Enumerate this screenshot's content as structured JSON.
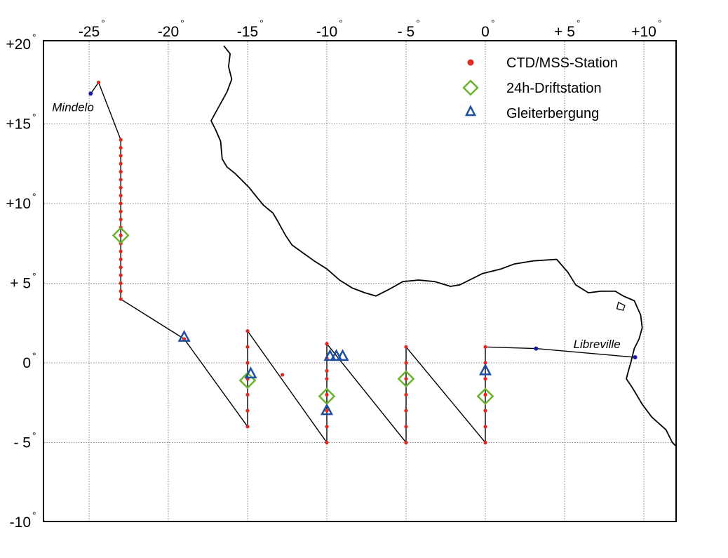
{
  "map": {
    "lon_ticks": [
      {
        "value": -25,
        "label": "-25"
      },
      {
        "value": -20,
        "label": "-20"
      },
      {
        "value": -15,
        "label": "-15"
      },
      {
        "value": -10,
        "label": "-10"
      },
      {
        "value": -5,
        "label": "- 5"
      },
      {
        "value": 0,
        "label": "0"
      },
      {
        "value": 5,
        "label": "+ 5"
      },
      {
        "value": 10,
        "label": "+10"
      }
    ],
    "lat_ticks": [
      {
        "value": 20,
        "label": "+20"
      },
      {
        "value": 15,
        "label": "+15"
      },
      {
        "value": 10,
        "label": "+10"
      },
      {
        "value": 5,
        "label": "+ 5"
      },
      {
        "value": 0,
        "label": "0"
      },
      {
        "value": -5,
        "label": "- 5"
      },
      {
        "value": -10,
        "label": "-10"
      }
    ],
    "degree_symbol": "°",
    "extent": {
      "lon": [
        -28,
        12
      ],
      "lat": [
        -10,
        20.3
      ]
    },
    "colors": {
      "station": "#e0281e",
      "drift": "#6ab42d",
      "glider": "#1f4fa0",
      "track": "#000000",
      "grid": "#888888",
      "port": "#1a1aa8"
    },
    "legend": {
      "station": "CTD/MSS-Station",
      "drift": "24h-Driftstation",
      "glider": "Gleiterbergung"
    },
    "places": [
      {
        "name": "Mindelo",
        "lon": -24.9,
        "lat": 16.9
      },
      {
        "name": "Libreville",
        "lon": 9.45,
        "lat": 0.4
      }
    ],
    "coastline": [
      [
        -16.5,
        19.9
      ],
      [
        -16.1,
        19.4
      ],
      [
        -16.2,
        18.6
      ],
      [
        -16.0,
        17.8
      ],
      [
        -16.3,
        17.0
      ],
      [
        -16.8,
        16.1
      ],
      [
        -17.3,
        15.2
      ],
      [
        -17.0,
        14.6
      ],
      [
        -16.7,
        13.9
      ],
      [
        -16.6,
        12.8
      ],
      [
        -16.3,
        12.3
      ],
      [
        -15.8,
        11.9
      ],
      [
        -15.4,
        11.5
      ],
      [
        -14.9,
        11.0
      ],
      [
        -14.5,
        10.5
      ],
      [
        -14.0,
        9.9
      ],
      [
        -13.4,
        9.4
      ],
      [
        -13.1,
        8.9
      ],
      [
        -12.6,
        8.0
      ],
      [
        -12.2,
        7.4
      ],
      [
        -11.5,
        6.9
      ],
      [
        -10.8,
        6.4
      ],
      [
        -10.0,
        5.9
      ],
      [
        -9.2,
        5.2
      ],
      [
        -8.4,
        4.7
      ],
      [
        -7.6,
        4.4
      ],
      [
        -6.9,
        4.2
      ],
      [
        -6.1,
        4.6
      ],
      [
        -5.2,
        5.1
      ],
      [
        -4.2,
        5.2
      ],
      [
        -3.2,
        5.1
      ],
      [
        -2.2,
        4.8
      ],
      [
        -1.6,
        4.9
      ],
      [
        -1.0,
        5.2
      ],
      [
        -0.2,
        5.6
      ],
      [
        1.0,
        5.9
      ],
      [
        1.8,
        6.2
      ],
      [
        3.0,
        6.4
      ],
      [
        4.5,
        6.5
      ],
      [
        5.2,
        5.7
      ],
      [
        5.7,
        4.9
      ],
      [
        6.5,
        4.4
      ],
      [
        7.3,
        4.5
      ],
      [
        8.2,
        4.5
      ],
      [
        8.7,
        4.2
      ],
      [
        9.4,
        3.9
      ],
      [
        9.8,
        3.0
      ],
      [
        9.9,
        2.2
      ],
      [
        9.7,
        1.5
      ],
      [
        9.4,
        0.9
      ],
      [
        9.2,
        0.1
      ],
      [
        9.0,
        -0.6
      ],
      [
        8.9,
        -1.0
      ],
      [
        9.3,
        -1.6
      ],
      [
        9.9,
        -2.6
      ],
      [
        10.5,
        -3.4
      ],
      [
        11.4,
        -4.2
      ],
      [
        11.8,
        -5.0
      ],
      [
        12.0,
        -5.2
      ]
    ],
    "island": [
      [
        8.4,
        3.8
      ],
      [
        8.8,
        3.6
      ],
      [
        8.7,
        3.3
      ],
      [
        8.3,
        3.4
      ],
      [
        8.4,
        3.8
      ]
    ],
    "track": [
      [
        -24.9,
        16.9
      ],
      [
        -24.4,
        17.6
      ],
      [
        -23.0,
        14.0
      ],
      [
        -23.0,
        4.0
      ],
      [
        -19.0,
        1.5
      ],
      [
        -15.0,
        -4.0
      ],
      [
        -15.0,
        2.0
      ],
      [
        -10.0,
        -5.0
      ],
      [
        -10.0,
        1.2
      ],
      [
        -5.0,
        -5.0
      ],
      [
        -5.0,
        1.0
      ],
      [
        0.0,
        -5.0
      ],
      [
        0.0,
        1.0
      ],
      [
        3.2,
        0.9
      ],
      [
        9.45,
        0.35
      ]
    ],
    "stations": [
      [
        -24.4,
        17.6
      ],
      [
        -23.0,
        14.0
      ],
      [
        -23.0,
        13.5
      ],
      [
        -23.0,
        13.0
      ],
      [
        -23.0,
        12.5
      ],
      [
        -23.0,
        12.0
      ],
      [
        -23.0,
        11.5
      ],
      [
        -23.0,
        11.0
      ],
      [
        -23.0,
        10.5
      ],
      [
        -23.0,
        10.0
      ],
      [
        -23.0,
        9.5
      ],
      [
        -23.0,
        9.0
      ],
      [
        -23.0,
        8.5
      ],
      [
        -23.0,
        8.0
      ],
      [
        -23.0,
        7.5
      ],
      [
        -23.0,
        7.0
      ],
      [
        -23.0,
        6.5
      ],
      [
        -23.0,
        6.0
      ],
      [
        -23.0,
        5.5
      ],
      [
        -23.0,
        5.0
      ],
      [
        -23.0,
        4.5
      ],
      [
        -23.0,
        4.0
      ],
      [
        -19.0,
        1.5
      ],
      [
        -15.0,
        2.0
      ],
      [
        -15.0,
        1.0
      ],
      [
        -15.0,
        0.0
      ],
      [
        -15.0,
        -1.0
      ],
      [
        -15.0,
        -2.0
      ],
      [
        -15.0,
        -3.0
      ],
      [
        -15.0,
        -4.0
      ],
      [
        -12.8,
        -0.75
      ],
      [
        -10.0,
        1.2
      ],
      [
        -10.0,
        0.3
      ],
      [
        -10.0,
        -0.5
      ],
      [
        -10.0,
        -1.0
      ],
      [
        -10.0,
        -2.0
      ],
      [
        -10.0,
        -3.0
      ],
      [
        -10.0,
        -4.0
      ],
      [
        -10.0,
        -5.0
      ],
      [
        -5.0,
        1.0
      ],
      [
        -5.0,
        0.0
      ],
      [
        -5.0,
        -1.0
      ],
      [
        -5.0,
        -2.0
      ],
      [
        -5.0,
        -3.0
      ],
      [
        -5.0,
        -4.0
      ],
      [
        -5.0,
        -5.0
      ],
      [
        0.0,
        1.0
      ],
      [
        0.0,
        0.0
      ],
      [
        0.0,
        -1.0
      ],
      [
        0.0,
        -2.0
      ],
      [
        0.0,
        -3.0
      ],
      [
        0.0,
        -4.0
      ],
      [
        0.0,
        -5.0
      ]
    ],
    "ports": [
      [
        -24.9,
        16.9
      ],
      [
        3.2,
        0.9
      ],
      [
        9.45,
        0.35
      ]
    ],
    "drift_stations": [
      [
        -23.0,
        8.0
      ],
      [
        -15.0,
        -1.1
      ],
      [
        -10.0,
        -2.1
      ],
      [
        -5.0,
        -1.0
      ],
      [
        0.0,
        -2.1
      ]
    ],
    "glider_recoveries": [
      [
        -19.0,
        1.6
      ],
      [
        -14.8,
        -0.7
      ],
      [
        -10.0,
        -3.0
      ],
      [
        -9.8,
        0.4
      ],
      [
        -9.4,
        0.4
      ],
      [
        -9.0,
        0.4
      ],
      [
        0.0,
        -0.5
      ]
    ]
  }
}
